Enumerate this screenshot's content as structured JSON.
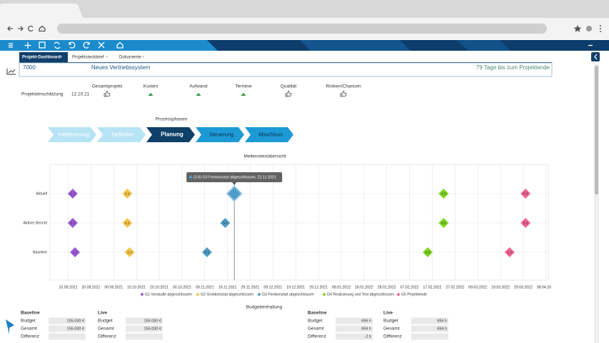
{
  "tabs": [
    "Projekt-Dashboard",
    "Projektsteckbrief",
    "Dokumente"
  ],
  "header": {
    "id": "7000",
    "name": "Neues Vertriebssystem",
    "remaining": "79 Tage bis zum Projektende"
  },
  "assessment": {
    "label": "Projekteinschätzung",
    "date": "12.10.21",
    "columns": [
      "Gesamtprojekt",
      "Kosten",
      "Aufwand",
      "Termine",
      "Qualität",
      "Risiken/Chancen"
    ]
  },
  "phases": {
    "title": "Prozessphasen",
    "steps": [
      "Initialisierung",
      "Definition",
      "Planung",
      "Steuerung",
      "Abschluss"
    ]
  },
  "chart_data": {
    "type": "milestone",
    "title": "Meilensteinübersicht",
    "categories": [
      "Aktuell",
      "Aktiver Bericht",
      "Baseline"
    ],
    "series": [
      {
        "name": "G1 Vorstudie abgeschlossen",
        "color": "#9b59d6",
        "x": [
          "12.09.2021",
          "12.09.2021",
          "13.09.2021"
        ],
        "labels": [
          "1.2",
          "1.2",
          "1.2"
        ]
      },
      {
        "name": "G2 Grobkonzept abgeschlossen",
        "color": "#f3c54a",
        "x": [
          "06.10.2021",
          "06.10.2021",
          "07.10.2021"
        ],
        "labels": [
          "2.2",
          "2.2",
          "2.2"
        ]
      },
      {
        "name": "G3 Feinkonzept abgeschlossen",
        "color": "#4f9cc8",
        "x": [
          "22.11.2021",
          "18.11.2021",
          "10.11.2021"
        ],
        "labels": [
          "3.6",
          "3.6",
          "3.6"
        ]
      },
      {
        "name": "G4 Realisierung und Test abgeschlossen",
        "color": "#7ed321",
        "x": [
          "22.02.2022",
          "22.02.2022",
          "15.02.2022"
        ],
        "labels": [
          "4.5",
          "4.5",
          "4.5"
        ]
      },
      {
        "name": "G5 Projektende",
        "color": "#f2628f",
        "x": [
          "30.03.2022",
          "30.03.2022",
          "23.03.2022"
        ],
        "labels": [
          "5.3",
          "5.3",
          "5.2"
        ]
      }
    ],
    "xlim": [
      "02.09.2021",
      "09.04.2022"
    ],
    "xticks": [
      "10.09.2021",
      "20.09.2021",
      "30.09.2021",
      "10.10.2021",
      "20.10.2021",
      "30.10.2021",
      "09.11.2021",
      "19.11.2021",
      "29.11.2021",
      "09.12.2021",
      "19.12.2021",
      "29.12.2021",
      "08.01.2022",
      "18.01.2022",
      "28.01.2022",
      "07.02.2022",
      "17.02.2022",
      "27.02.2022",
      "09.03.2022",
      "19.03.2022",
      "29.03.2022",
      "08.04.2022"
    ],
    "grid": true,
    "tooltip": "(3.6) G3 Feinkonzept abgeschlossen, 22.11.2021"
  },
  "budget": {
    "title": "Budgeteinhaltung",
    "groups": [
      {
        "name": "Baseline",
        "rows": [
          {
            "label": "Budget",
            "value": "155.030 €"
          },
          {
            "label": "Gesamt",
            "value": "155.030 €"
          },
          {
            "label": "Differenz"
          }
        ]
      },
      {
        "name": "Live",
        "rows": [
          {
            "label": "Budget",
            "value": "155.030 €"
          },
          {
            "label": "Gesamt",
            "value": "155.030 €"
          },
          {
            "label": "Differenz"
          }
        ]
      },
      {
        "name": "Baseline",
        "rows": [
          {
            "label": "Budget",
            "value": "696 h"
          },
          {
            "label": "Gesamt",
            "value": "694 h"
          },
          {
            "label": "Differenz",
            "value": "-2 h"
          }
        ]
      },
      {
        "name": "Live",
        "rows": [
          {
            "label": "Budget",
            "value": "694 h"
          },
          {
            "label": "Gesamt",
            "value": "694 h"
          },
          {
            "label": "Differenz"
          }
        ]
      }
    ]
  }
}
